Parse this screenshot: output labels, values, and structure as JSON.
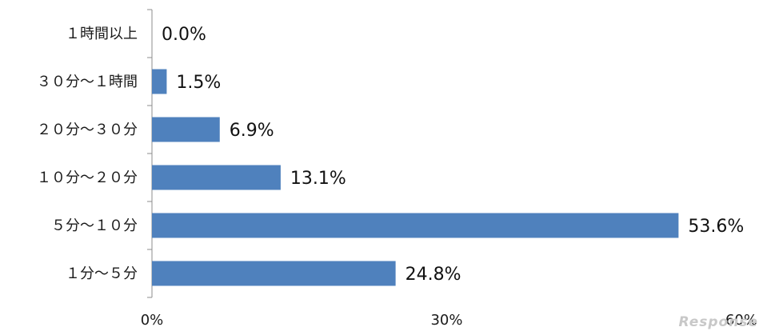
{
  "chart_data": {
    "type": "bar",
    "orientation": "horizontal",
    "categories": [
      "１時間以上",
      "３０分～１時間",
      "２０分～３０分",
      "１０分～２０分",
      "５分～１０分",
      "１分～５分"
    ],
    "values": [
      0.0,
      1.5,
      6.9,
      13.1,
      53.6,
      24.8
    ],
    "value_labels": [
      "0.0%",
      "1.5%",
      "6.9%",
      "13.1%",
      "53.6%",
      "24.8%"
    ],
    "x_ticks": [
      "0%",
      "30%",
      "60%"
    ],
    "xlim": [
      0,
      60
    ],
    "title": "",
    "xlabel": "",
    "ylabel": "",
    "grid": false,
    "bar_color": "#4f81bd"
  },
  "watermark": "Response"
}
